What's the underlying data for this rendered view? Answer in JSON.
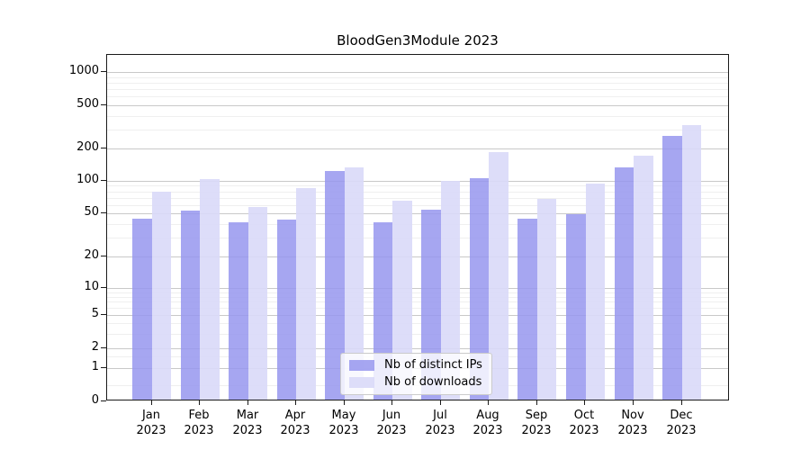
{
  "chart_data": {
    "type": "bar",
    "title": "BloodGen3Module 2023",
    "categories": [
      "Jan",
      "Feb",
      "Mar",
      "Apr",
      "May",
      "Jun",
      "Jul",
      "Aug",
      "Sep",
      "Oct",
      "Nov",
      "Dec"
    ],
    "year_label": "2023",
    "series": [
      {
        "name": "Nb of distinct IPs",
        "color": "#9696ee",
        "values": [
          45,
          53,
          41,
          44,
          124,
          41,
          54,
          106,
          45,
          49,
          134,
          260
        ]
      },
      {
        "name": "Nb of downloads",
        "color": "#d9d9f8",
        "values": [
          80,
          104,
          57,
          85,
          133,
          65,
          100,
          185,
          68,
          95,
          172,
          330
        ]
      }
    ],
    "yticks": [
      0,
      1,
      2,
      5,
      10,
      20,
      50,
      100,
      200,
      500,
      1000
    ],
    "yminorticks": [
      0.5,
      1.5,
      3,
      4,
      6,
      7,
      8,
      9,
      30,
      40,
      60,
      70,
      80,
      90,
      300,
      400,
      600,
      700,
      800,
      900
    ],
    "xlabel": "",
    "ylabel": "",
    "yscale": "symlog",
    "ylim": [
      0,
      1400
    ],
    "grid": true,
    "legend_position": "lower center"
  }
}
